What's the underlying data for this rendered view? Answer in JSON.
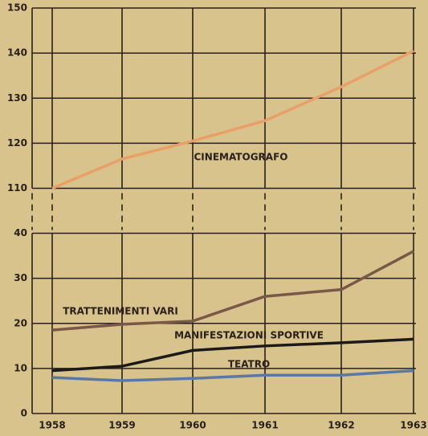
{
  "chart_data": {
    "type": "line",
    "categories": [
      "1958",
      "1959",
      "1960",
      "1961",
      "1962",
      "1963"
    ],
    "series": [
      {
        "name": "CINEMATOGRAFO",
        "color": "#e9a066",
        "values": [
          110,
          116.5,
          120.5,
          125,
          132.5,
          140.5
        ]
      },
      {
        "name": "TRATTENIMENTI VARI",
        "color": "#7a5848",
        "values": [
          18.5,
          19.8,
          20.5,
          26,
          27.5,
          36
        ]
      },
      {
        "name": "MANIFESTAZIONI SPORTIVE",
        "color": "#1c1a18",
        "values": [
          9.5,
          10.5,
          14,
          15,
          15.7,
          16.5
        ]
      },
      {
        "name": "TEATRO",
        "color": "#5a78a6",
        "values": [
          8,
          7.3,
          7.8,
          8.5,
          8.5,
          9.5
        ]
      }
    ],
    "ylim": [
      0,
      150
    ],
    "y_break": [
      40,
      110
    ],
    "yticks": [
      0,
      10,
      20,
      30,
      40,
      110,
      120,
      130,
      140,
      150
    ],
    "grid": true
  }
}
